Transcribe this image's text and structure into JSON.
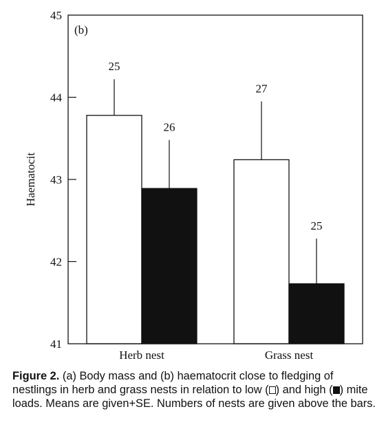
{
  "chart_data": {
    "type": "bar",
    "panel_label": "(b)",
    "ylabel": "Haematocit",
    "ylim": [
      41,
      45
    ],
    "yticks": [
      41,
      42,
      43,
      44,
      45
    ],
    "categories": [
      "Herb nest",
      "Grass nest"
    ],
    "series": [
      {
        "fill": "#ffffff",
        "values": [
          43.78,
          43.24
        ],
        "se_upper": [
          44.22,
          43.95
        ],
        "n": [
          25,
          27
        ]
      },
      {
        "fill": "#111111",
        "values": [
          42.89,
          41.73
        ],
        "se_upper": [
          43.48,
          42.28
        ],
        "n": [
          26,
          25
        ]
      }
    ],
    "grid": false,
    "legend": "none"
  },
  "caption": {
    "label": "Figure 2.",
    "part1": " (a) Body mass and (b) haematocrit close to fledging of nestlings in herb and grass nests in relation to low (",
    "part2": ") and high (",
    "part3": ") mite loads. Means are given+SE. Numbers of nests are given above the bars."
  }
}
